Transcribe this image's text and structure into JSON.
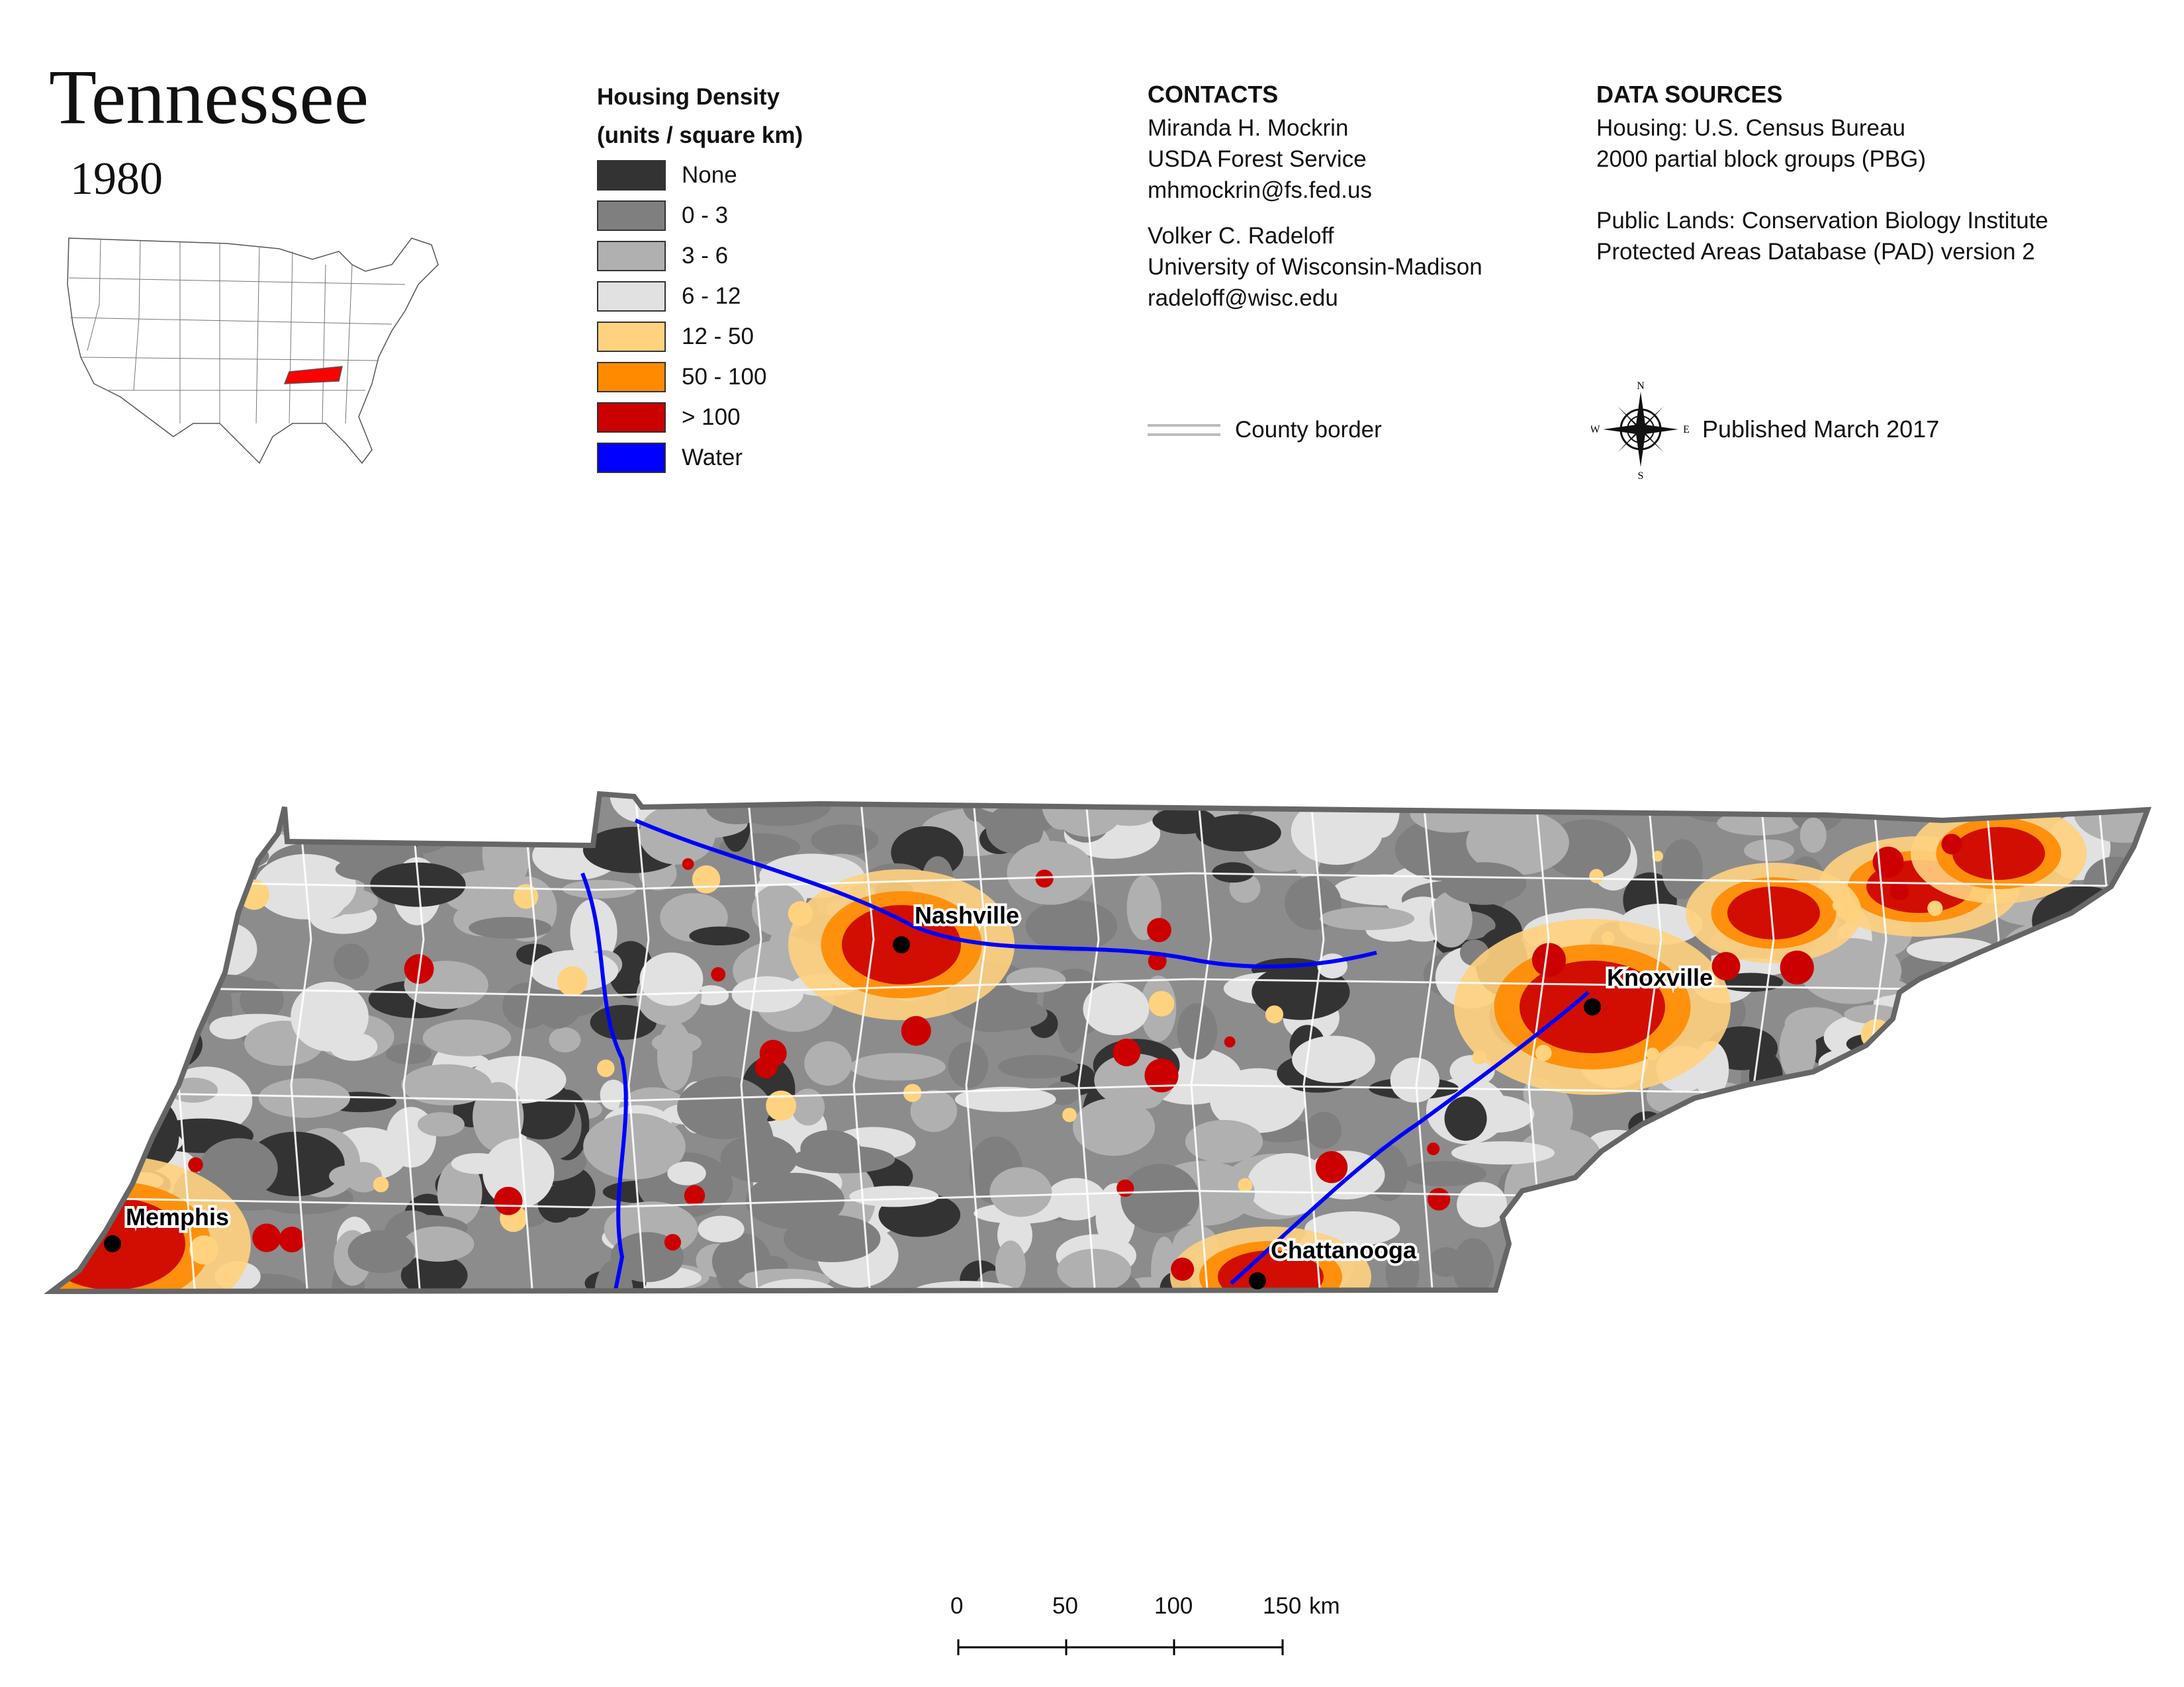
{
  "title": "Tennessee",
  "year": "1980",
  "legend": {
    "title_line1": "Housing Density",
    "title_line2": "(units / square km)",
    "items": [
      {
        "label": "None",
        "color": "#333333"
      },
      {
        "label": "0 - 3",
        "color": "#7f7f7f"
      },
      {
        "label": "3 - 6",
        "color": "#b0b0b0"
      },
      {
        "label": "6 - 12",
        "color": "#e1e1e1"
      },
      {
        "label": "12 - 50",
        "color": "#ffd27f"
      },
      {
        "label": "50 - 100",
        "color": "#ff8a00"
      },
      {
        "label": "> 100",
        "color": "#cc0000"
      },
      {
        "label": "Water",
        "color": "#0000ff"
      }
    ]
  },
  "contacts": {
    "heading": "CONTACTS",
    "person1": [
      "Miranda H. Mockrin",
      "USDA Forest Service",
      "mhmockrin@fs.fed.us"
    ],
    "person2": [
      "Volker C. Radeloff",
      "University of Wisconsin-Madison",
      "radeloff@wisc.edu"
    ]
  },
  "sources": {
    "heading": "DATA SOURCES",
    "housing": [
      "Housing: U.S. Census Bureau",
      "2000 partial block groups (PBG)"
    ],
    "lands": [
      "Public Lands: Conservation Biology Institute",
      "Protected Areas Database (PAD) version 2"
    ]
  },
  "county_border_label": "County border",
  "published": "Published March 2017",
  "compass": {
    "n": "N",
    "s": "S",
    "e": "E",
    "w": "W"
  },
  "cities": {
    "memphis": "Memphis",
    "nashville": "Nashville",
    "knoxville": "Knoxville",
    "chattanooga": "Chattanooga"
  },
  "scale": {
    "ticks": [
      "0",
      "50",
      "100",
      "150"
    ],
    "unit": "km"
  },
  "colors": {
    "none": "#333333",
    "d0_3": "#7f7f7f",
    "d3_6": "#b0b0b0",
    "d6_12": "#e1e1e1",
    "d12_50": "#ffd27f",
    "d50_100": "#ff8a00",
    "d100": "#cc0000",
    "water": "#0000ff",
    "highlight_state": "#ff0000"
  }
}
